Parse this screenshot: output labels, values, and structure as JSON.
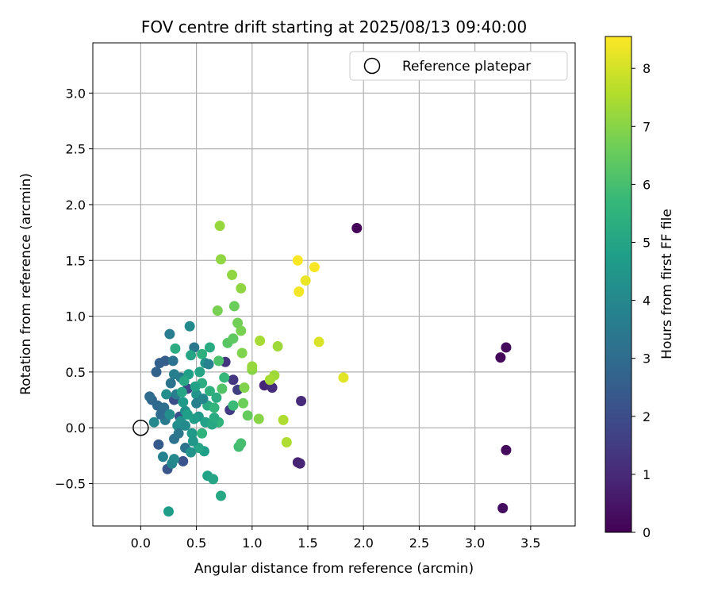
{
  "chart_data": {
    "type": "scatter",
    "title": "FOV centre drift starting at 2025/08/13 09:40:00",
    "xlabel": "Angular distance from reference (arcmin)",
    "ylabel": "Rotation from reference (arcmin)",
    "xlim": [
      -0.43,
      3.9
    ],
    "ylim": [
      -0.88,
      3.45
    ],
    "xticks": [
      0.0,
      0.5,
      1.0,
      1.5,
      2.0,
      2.5,
      3.0,
      3.5
    ],
    "xtick_labels": [
      "0.0",
      "0.5",
      "1.0",
      "1.5",
      "2.0",
      "2.5",
      "3.0",
      "3.5"
    ],
    "yticks": [
      -0.5,
      0.0,
      0.5,
      1.0,
      1.5,
      2.0,
      2.5,
      3.0
    ],
    "ytick_labels": [
      "−0.5",
      "0.0",
      "0.5",
      "1.0",
      "1.5",
      "2.0",
      "2.5",
      "3.0"
    ],
    "grid": true,
    "legend": {
      "placement": "top-right",
      "entries": [
        {
          "label": "Reference platepar",
          "marker": "open-circle"
        }
      ]
    },
    "reference_point": {
      "x": 0.0,
      "y": 0.0
    },
    "colorbar": {
      "label": "Hours from first FF file",
      "range": [
        0,
        8.55
      ],
      "ticks": [
        0,
        1,
        2,
        3,
        4,
        5,
        6,
        7,
        8
      ],
      "tick_labels": [
        "0",
        "1",
        "2",
        "3",
        "4",
        "5",
        "6",
        "7",
        "8"
      ],
      "colormap": "viridis",
      "colormap_stops": [
        "#440154",
        "#482878",
        "#3e4a89",
        "#31688e",
        "#26828e",
        "#1f9e89",
        "#35b779",
        "#6ece58",
        "#b5de2b",
        "#fde725"
      ]
    },
    "points": [
      {
        "x": 1.94,
        "y": 1.79,
        "c": 0.1
      },
      {
        "x": 3.23,
        "y": 0.63,
        "c": 0.15
      },
      {
        "x": 3.28,
        "y": 0.72,
        "c": 0.2
      },
      {
        "x": 3.28,
        "y": -0.2,
        "c": 0.25
      },
      {
        "x": 3.25,
        "y": -0.72,
        "c": 0.3
      },
      {
        "x": 1.41,
        "y": -0.31,
        "c": 0.8
      },
      {
        "x": 1.43,
        "y": -0.32,
        "c": 0.85
      },
      {
        "x": 1.44,
        "y": 0.24,
        "c": 1.0
      },
      {
        "x": 1.11,
        "y": 0.38,
        "c": 0.9
      },
      {
        "x": 1.18,
        "y": 0.36,
        "c": 1.1
      },
      {
        "x": 0.76,
        "y": 0.59,
        "c": 1.3
      },
      {
        "x": 0.8,
        "y": 0.16,
        "c": 1.5
      },
      {
        "x": 0.83,
        "y": 0.43,
        "c": 1.4
      },
      {
        "x": 0.87,
        "y": 0.34,
        "c": 1.6
      },
      {
        "x": 0.42,
        "y": 0.35,
        "c": 1.8
      },
      {
        "x": 0.3,
        "y": 0.25,
        "c": 2.0
      },
      {
        "x": 0.35,
        "y": 0.1,
        "c": 2.1
      },
      {
        "x": 0.38,
        "y": -0.3,
        "c": 2.2
      },
      {
        "x": 0.24,
        "y": -0.37,
        "c": 2.3
      },
      {
        "x": 0.16,
        "y": -0.15,
        "c": 2.4
      },
      {
        "x": 0.22,
        "y": 0.6,
        "c": 2.5
      },
      {
        "x": 0.17,
        "y": 0.58,
        "c": 2.6
      },
      {
        "x": 0.14,
        "y": 0.5,
        "c": 2.7
      },
      {
        "x": 0.1,
        "y": 0.25,
        "c": 2.8
      },
      {
        "x": 0.15,
        "y": 0.2,
        "c": 2.9
      },
      {
        "x": 0.08,
        "y": 0.28,
        "c": 3.0
      },
      {
        "x": 0.21,
        "y": 0.18,
        "c": 3.1
      },
      {
        "x": 0.3,
        "y": -0.1,
        "c": 3.2
      },
      {
        "x": 0.4,
        "y": -0.18,
        "c": 3.3
      },
      {
        "x": 0.48,
        "y": 0.72,
        "c": 3.4
      },
      {
        "x": 0.36,
        "y": 0.45,
        "c": 3.5
      },
      {
        "x": 0.26,
        "y": 0.84,
        "c": 3.6
      },
      {
        "x": 0.3,
        "y": 0.48,
        "c": 3.7
      },
      {
        "x": 0.2,
        "y": -0.26,
        "c": 3.8
      },
      {
        "x": 0.28,
        "y": -0.32,
        "c": 3.9
      },
      {
        "x": 0.12,
        "y": 0.05,
        "c": 4.0
      },
      {
        "x": 0.44,
        "y": 0.91,
        "c": 4.1
      },
      {
        "x": 0.33,
        "y": 0.02,
        "c": 4.2
      },
      {
        "x": 0.4,
        "y": 0.15,
        "c": 4.3
      },
      {
        "x": 0.5,
        "y": 0.3,
        "c": 4.4
      },
      {
        "x": 0.52,
        "y": 0.1,
        "c": 4.5
      },
      {
        "x": 0.46,
        "y": -0.05,
        "c": 4.6
      },
      {
        "x": 0.25,
        "y": -0.75,
        "c": 4.7
      },
      {
        "x": 0.57,
        "y": -0.21,
        "c": 4.8
      },
      {
        "x": 0.6,
        "y": -0.43,
        "c": 4.9
      },
      {
        "x": 0.65,
        "y": -0.46,
        "c": 5.0
      },
      {
        "x": 0.72,
        "y": -0.61,
        "c": 5.1
      },
      {
        "x": 0.6,
        "y": 0.2,
        "c": 5.2
      },
      {
        "x": 0.55,
        "y": 0.4,
        "c": 5.3
      },
      {
        "x": 0.62,
        "y": 0.33,
        "c": 5.4
      },
      {
        "x": 0.7,
        "y": 0.05,
        "c": 5.5
      },
      {
        "x": 0.66,
        "y": 0.18,
        "c": 5.6
      },
      {
        "x": 0.75,
        "y": 0.45,
        "c": 5.7
      },
      {
        "x": 0.83,
        "y": 0.2,
        "c": 5.8
      },
      {
        "x": 0.88,
        "y": -0.17,
        "c": 5.9
      },
      {
        "x": 0.9,
        "y": -0.14,
        "c": 6.0
      },
      {
        "x": 0.7,
        "y": 0.6,
        "c": 6.1
      },
      {
        "x": 0.73,
        "y": 0.35,
        "c": 6.2
      },
      {
        "x": 0.78,
        "y": 0.76,
        "c": 6.3
      },
      {
        "x": 0.83,
        "y": 0.8,
        "c": 6.4
      },
      {
        "x": 0.96,
        "y": 0.11,
        "c": 6.5
      },
      {
        "x": 0.84,
        "y": 1.09,
        "c": 6.6
      },
      {
        "x": 0.92,
        "y": 0.22,
        "c": 6.6
      },
      {
        "x": 0.87,
        "y": 0.94,
        "c": 6.7
      },
      {
        "x": 0.69,
        "y": 1.05,
        "c": 6.8
      },
      {
        "x": 0.9,
        "y": 0.87,
        "c": 6.8
      },
      {
        "x": 0.91,
        "y": 0.67,
        "c": 6.9
      },
      {
        "x": 0.93,
        "y": 0.36,
        "c": 6.9
      },
      {
        "x": 1.0,
        "y": 0.52,
        "c": 7.0
      },
      {
        "x": 1.06,
        "y": 0.08,
        "c": 7.0
      },
      {
        "x": 0.82,
        "y": 1.37,
        "c": 7.1
      },
      {
        "x": 0.9,
        "y": 1.25,
        "c": 7.1
      },
      {
        "x": 0.72,
        "y": 1.51,
        "c": 7.1
      },
      {
        "x": 0.71,
        "y": 1.81,
        "c": 7.2
      },
      {
        "x": 1.0,
        "y": 0.55,
        "c": 7.2
      },
      {
        "x": 1.2,
        "y": 0.47,
        "c": 7.3
      },
      {
        "x": 1.23,
        "y": 0.73,
        "c": 7.3
      },
      {
        "x": 1.07,
        "y": 0.78,
        "c": 7.4
      },
      {
        "x": 1.16,
        "y": 0.43,
        "c": 7.4
      },
      {
        "x": 1.31,
        "y": -0.13,
        "c": 7.5
      },
      {
        "x": 1.28,
        "y": 0.07,
        "c": 7.5
      },
      {
        "x": 1.6,
        "y": 0.77,
        "c": 8.1
      },
      {
        "x": 1.82,
        "y": 0.45,
        "c": 8.2
      },
      {
        "x": 1.48,
        "y": 1.32,
        "c": 8.3
      },
      {
        "x": 1.42,
        "y": 1.22,
        "c": 8.4
      },
      {
        "x": 1.56,
        "y": 1.44,
        "c": 8.5
      },
      {
        "x": 1.41,
        "y": 1.5,
        "c": 8.5
      },
      {
        "x": 0.52,
        "y": -0.18,
        "c": 5.0
      },
      {
        "x": 0.48,
        "y": 0.08,
        "c": 4.7
      },
      {
        "x": 0.58,
        "y": 0.05,
        "c": 4.9
      },
      {
        "x": 0.43,
        "y": 0.48,
        "c": 4.8
      },
      {
        "x": 0.38,
        "y": 0.23,
        "c": 4.6
      },
      {
        "x": 0.27,
        "y": 0.4,
        "c": 3.3
      },
      {
        "x": 0.32,
        "y": 0.3,
        "c": 3.6
      },
      {
        "x": 0.62,
        "y": 0.72,
        "c": 5.2
      },
      {
        "x": 0.55,
        "y": 0.66,
        "c": 5.4
      },
      {
        "x": 0.31,
        "y": 0.71,
        "c": 5.3
      },
      {
        "x": 0.23,
        "y": 0.3,
        "c": 4.2
      },
      {
        "x": 0.36,
        "y": 0.06,
        "c": 4.3
      },
      {
        "x": 0.47,
        "y": -0.12,
        "c": 4.5
      },
      {
        "x": 0.64,
        "y": 0.03,
        "c": 5.1
      },
      {
        "x": 0.68,
        "y": 0.27,
        "c": 5.3
      },
      {
        "x": 0.58,
        "y": 0.58,
        "c": 4.4
      },
      {
        "x": 0.45,
        "y": 0.65,
        "c": 5.0
      },
      {
        "x": 0.39,
        "y": 0.42,
        "c": 5.1
      },
      {
        "x": 0.29,
        "y": 0.6,
        "c": 3.2
      },
      {
        "x": 0.34,
        "y": -0.05,
        "c": 3.4
      },
      {
        "x": 0.5,
        "y": 0.22,
        "c": 3.7
      },
      {
        "x": 0.56,
        "y": 0.26,
        "c": 3.9
      },
      {
        "x": 0.42,
        "y": 0.12,
        "c": 4.8
      },
      {
        "x": 0.53,
        "y": 0.5,
        "c": 5.0
      },
      {
        "x": 0.61,
        "y": 0.57,
        "c": 3.8
      },
      {
        "x": 0.22,
        "y": 0.07,
        "c": 3.5
      },
      {
        "x": 0.18,
        "y": 0.12,
        "c": 3.0
      },
      {
        "x": 0.3,
        "y": -0.28,
        "c": 4.0
      },
      {
        "x": 0.45,
        "y": -0.22,
        "c": 4.4
      },
      {
        "x": 0.55,
        "y": -0.05,
        "c": 5.5
      },
      {
        "x": 0.66,
        "y": 0.09,
        "c": 5.2
      },
      {
        "x": 0.4,
        "y": 0.02,
        "c": 4.1
      },
      {
        "x": 0.49,
        "y": 0.37,
        "c": 4.9
      },
      {
        "x": 0.37,
        "y": 0.32,
        "c": 5.0
      },
      {
        "x": 0.26,
        "y": 0.12,
        "c": 4.2
      }
    ]
  }
}
